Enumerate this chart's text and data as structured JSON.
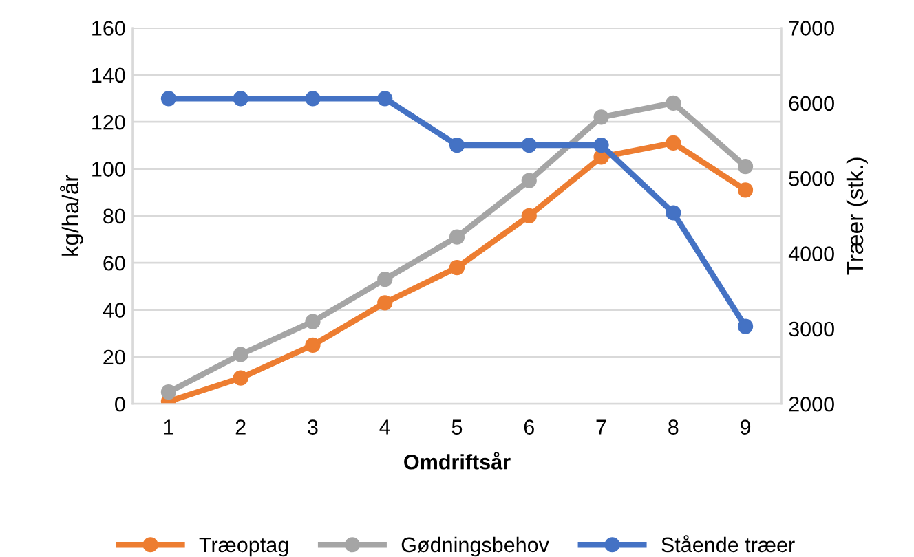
{
  "chart_data": {
    "type": "line",
    "xlabel": "Omdriftsår",
    "ylabel": "kg/ha/år",
    "y2label": "Træer (stk.)",
    "categories": [
      "1",
      "2",
      "3",
      "4",
      "5",
      "6",
      "7",
      "8",
      "9"
    ],
    "series": [
      {
        "name": "Træoptag",
        "color": "#ed7d31",
        "values": [
          1,
          11,
          25,
          43,
          58,
          80,
          105,
          111,
          91
        ]
      },
      {
        "name": "Gødningsbehov",
        "color": "#a5a5a5",
        "values": [
          5,
          21,
          35,
          53,
          71,
          95,
          122,
          128,
          101
        ]
      },
      {
        "name": "Stående træer",
        "color": "#4472c4",
        "axis": "y2",
        "values": [
          6060,
          6060,
          6060,
          6060,
          5440,
          5440,
          5440,
          4540,
          3030
        ]
      }
    ],
    "ylim": [
      0,
      160
    ],
    "yticks": [
      0,
      20,
      40,
      60,
      80,
      100,
      120,
      140,
      160
    ],
    "y2lim": [
      2000,
      7000
    ],
    "y2ticks": [
      2000,
      3000,
      4000,
      5000,
      6000,
      7000
    ],
    "grid": "y",
    "legend": "bottom",
    "marker": "circle",
    "line_style": "solid"
  }
}
